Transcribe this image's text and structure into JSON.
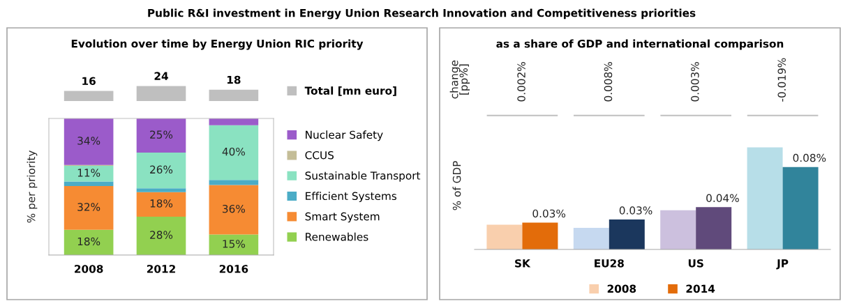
{
  "chart_data": [
    {
      "type": "bar",
      "title": "Public R&I investment in Energy Union Research Innovation and Competitiveness priorities",
      "subtitle": "Evolution over time by Energy Union RIC priority",
      "categories": [
        null,
        null,
        null
      ],
      "series": [
        {
          "name": "Total [mn euro]",
          "color": "#bfbfbf",
          "values": [
            16,
            24,
            18
          ]
        }
      ],
      "data_labels": true,
      "legend": "right",
      "tick_labels": false
    },
    {
      "type": "bar",
      "stacked": true,
      "ylabel": "% per priority",
      "categories": [
        "2008",
        "2012",
        "2016"
      ],
      "legend": "right",
      "series": [
        {
          "name": "Renewables",
          "color": "#92d050",
          "values": [
            18.5,
            28.1,
            15
          ],
          "value_labels": [
            "18%",
            "28%",
            "15%"
          ]
        },
        {
          "name": "Smart System",
          "color": "#f68b33",
          "values": [
            32,
            18,
            36.3
          ],
          "value_labels": [
            "32%",
            "18%",
            "36%"
          ]
        },
        {
          "name": "Efficient Systems",
          "color": "#4bacc6",
          "values": [
            3.3,
            2.7,
            3.7
          ],
          "value_labels": [
            null,
            null,
            null
          ]
        },
        {
          "name": "Sustainable Transport",
          "color": "#8ae2c1",
          "values": [
            11.5,
            26.2,
            40
          ],
          "value_labels": [
            "11%",
            "26%",
            "40%"
          ]
        },
        {
          "name": "CCUS",
          "color": "#c4bd97",
          "values": [
            0.7,
            0,
            0
          ],
          "value_labels": [
            null,
            null,
            null
          ]
        },
        {
          "name": "Nuclear Safety",
          "color": "#9b5bca",
          "values": [
            34,
            25,
            5
          ],
          "value_labels": [
            "34%",
            "25%",
            null
          ]
        }
      ]
    },
    {
      "type": "other",
      "title": "as a share of GDP and international comparison",
      "ylabel": "change\n[pp%]",
      "annotations": [
        "0.002%",
        "0.008%",
        "0.003%",
        "-0.019%"
      ]
    },
    {
      "type": "bar",
      "ylabel": "% of GDP",
      "categories": [
        "SK",
        "EU28",
        "US",
        "JP"
      ],
      "legend": "bottom",
      "series": [
        {
          "name": "2008",
          "color": "#f9cfad",
          "colors": [
            "#f9cfad",
            "#c6d9f0",
            "#ccc0de",
            "#b7dee8"
          ],
          "values": [
            0.024,
            0.021,
            0.038,
            0.099
          ],
          "value_labels": [
            null,
            null,
            null,
            null
          ]
        },
        {
          "name": "2014",
          "color": "#e36c0a",
          "colors": [
            "#e36c0a",
            "#1b375d",
            "#604a7b",
            "#31849b"
          ],
          "values": [
            0.026,
            0.029,
            0.041,
            0.08
          ],
          "value_labels": [
            "0.03%",
            "0.03%",
            "0.04%",
            "0.08%"
          ]
        }
      ]
    }
  ]
}
